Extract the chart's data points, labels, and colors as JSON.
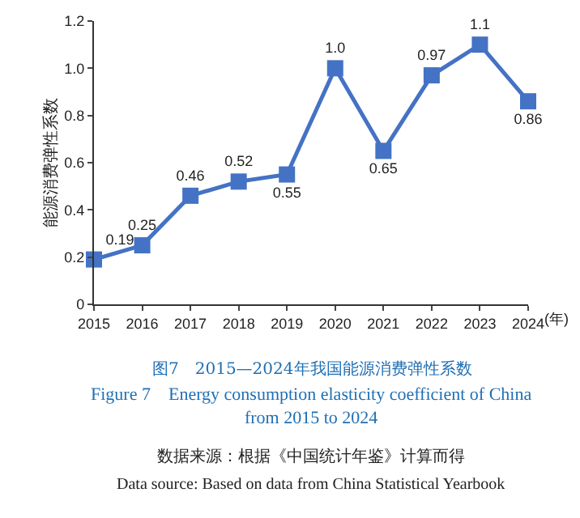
{
  "chart_data": {
    "type": "line",
    "title": "图7　2015—2024年我国能源消费弹性系数",
    "subtitle": "Figure 7　Energy consumption elasticity coefficient of China from 2015 to 2024",
    "ylabel": "能源消费弹性系数",
    "xlabel": "(年)",
    "categories": [
      "2015",
      "2016",
      "2017",
      "2018",
      "2019",
      "2020",
      "2021",
      "2022",
      "2023",
      "2024"
    ],
    "series": [
      {
        "color": "#4472c4",
        "values": [
          0.19,
          0.25,
          0.46,
          0.52,
          0.55,
          1.0,
          0.65,
          0.97,
          1.1,
          0.86
        ],
        "value_labels": [
          "0.19",
          "0.25",
          "0.46",
          "0.52",
          "0.55",
          "1.0",
          "0.65",
          "0.97",
          "1.1",
          "0.86"
        ]
      }
    ],
    "ylim": [
      0,
      1.2
    ],
    "yticks": [
      0,
      0.2,
      0.4,
      0.6,
      0.8,
      {
        "value": 1.0,
        "label": "1.0"
      },
      1.2
    ],
    "marker": "square",
    "line_style": "solid",
    "annotations": [
      "数据来源：根据《中国统计年鉴》计算而得",
      "Data source: Based on data from China Statistical Yearbook"
    ]
  }
}
